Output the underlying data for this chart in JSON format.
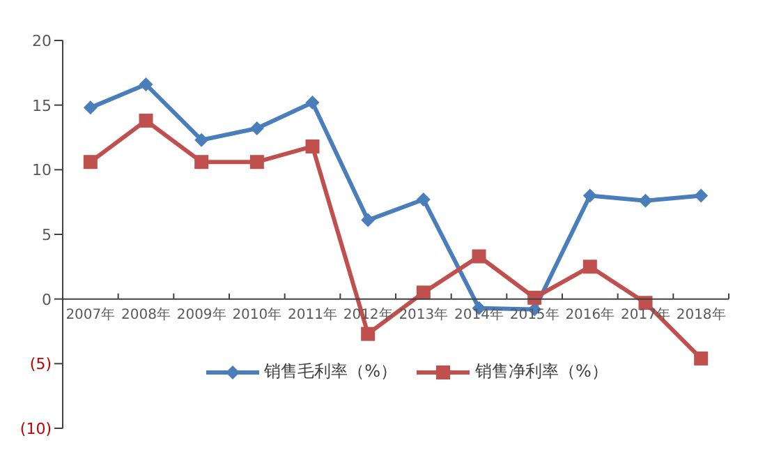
{
  "chart_data": {
    "type": "line",
    "categories": [
      "2007年",
      "2008年",
      "2009年",
      "2010年",
      "2011年",
      "2012年",
      "2013年",
      "2014年",
      "2015年",
      "2016年",
      "2017年",
      "2018年"
    ],
    "series": [
      {
        "name": "销售毛利率（%）",
        "color": "#4a7ebb",
        "marker": "diamond",
        "values": [
          14.8,
          16.6,
          12.3,
          13.2,
          15.2,
          6.1,
          7.7,
          -0.7,
          -0.8,
          8.0,
          7.6,
          8.0
        ]
      },
      {
        "name": "销售净利率（%）",
        "color": "#c0504d",
        "marker": "square",
        "values": [
          10.6,
          13.8,
          10.6,
          10.6,
          11.8,
          -2.7,
          0.5,
          3.3,
          0.1,
          2.5,
          -0.3,
          -4.6
        ]
      }
    ],
    "ylim": [
      -10,
      20
    ],
    "yticks": [
      {
        "value": -10,
        "label": "(10)"
      },
      {
        "value": -5,
        "label": "(5)"
      },
      0,
      5,
      10,
      15,
      20
    ],
    "grid": false,
    "legend": "bottom",
    "line_style": "solid"
  }
}
